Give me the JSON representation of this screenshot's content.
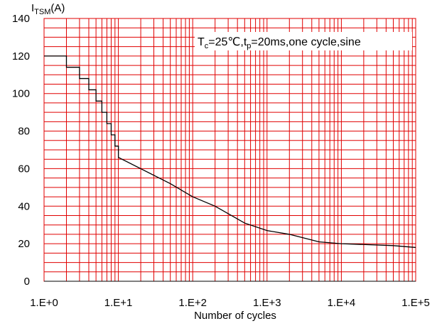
{
  "chart_data": {
    "type": "line",
    "xscale": "log",
    "xlim": [
      1,
      100000
    ],
    "ylim": [
      0,
      140
    ],
    "grid": true,
    "colors": {
      "grid": "#e00000",
      "line": "#000000",
      "background": "#ffffff"
    },
    "ylabel": {
      "main": "I",
      "sub": "TSM",
      "unit": "(A)"
    },
    "xlabel": "Number of cycles",
    "x_tick_labels": [
      "1.E+0",
      "1.E+1",
      "1.E+2",
      "1.E+3",
      "1.E+4",
      "1.E+5"
    ],
    "y_tick_labels": [
      "0",
      "20",
      "40",
      "60",
      "80",
      "100",
      "120",
      "140"
    ],
    "annotation": {
      "T": "T",
      "c": "c",
      "eq1": "=25℃,t",
      "p": "p",
      "eq2": "=20ms,one cycle,sine"
    },
    "series": [
      {
        "points": [
          [
            1,
            120
          ],
          [
            2,
            120
          ],
          [
            2,
            114
          ],
          [
            3,
            114
          ],
          [
            3,
            108
          ],
          [
            4,
            108
          ],
          [
            4,
            102
          ],
          [
            5,
            102
          ],
          [
            5,
            96
          ],
          [
            6,
            96
          ],
          [
            6,
            90
          ],
          [
            7,
            90
          ],
          [
            7,
            84
          ],
          [
            8,
            84
          ],
          [
            8,
            78
          ],
          [
            9,
            78
          ],
          [
            9,
            72
          ],
          [
            10,
            72
          ],
          [
            10,
            66
          ],
          [
            50,
            52
          ],
          [
            100,
            45
          ],
          [
            200,
            40
          ],
          [
            500,
            31
          ],
          [
            1000,
            27
          ],
          [
            2000,
            25
          ],
          [
            5000,
            21
          ],
          [
            10000,
            20
          ],
          [
            50000,
            19
          ],
          [
            100000,
            18
          ]
        ]
      }
    ]
  }
}
